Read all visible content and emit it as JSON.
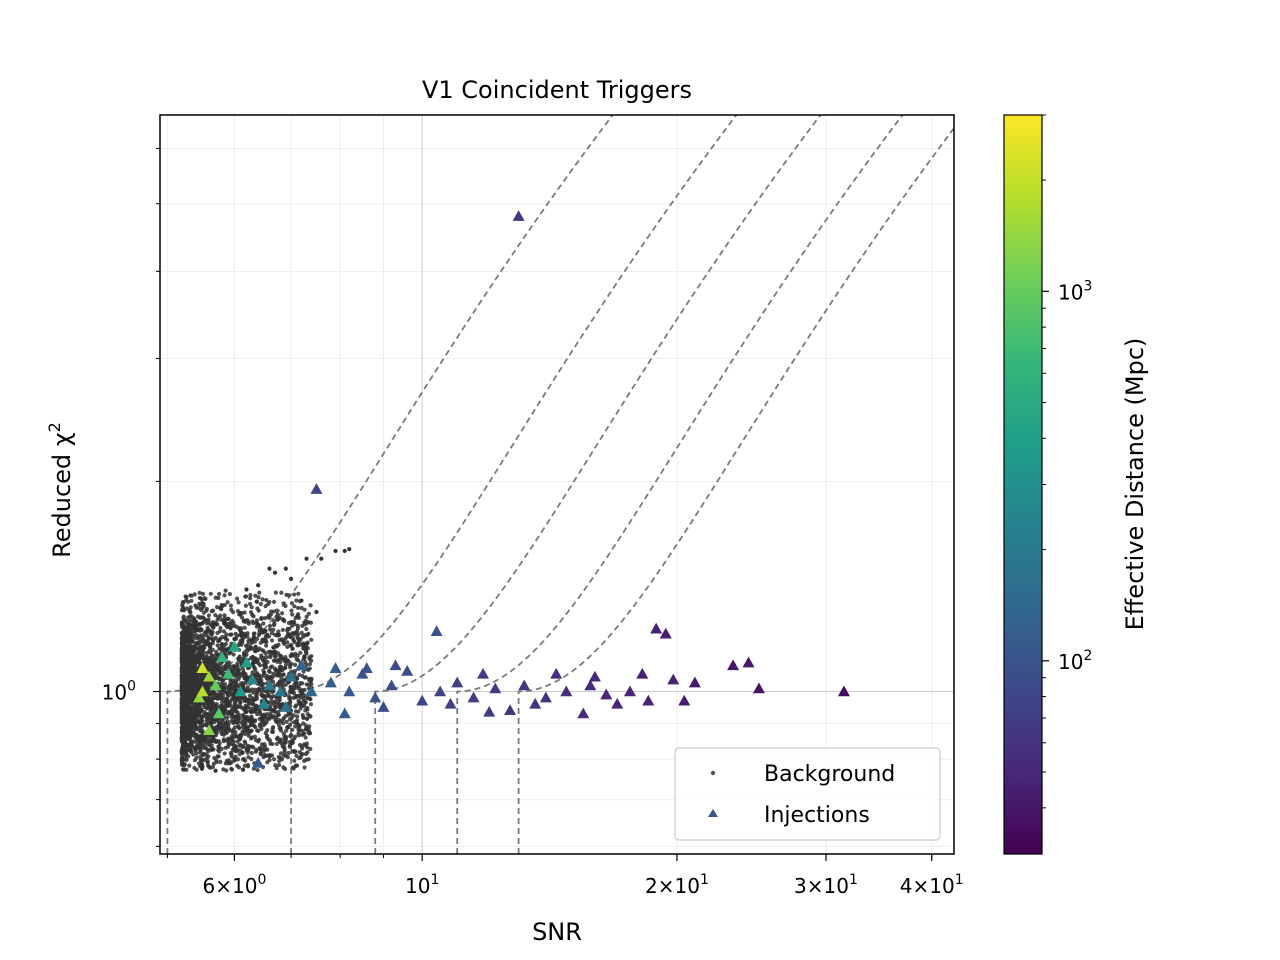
{
  "chart_data": {
    "type": "scatter",
    "title": "V1 Coincident Triggers",
    "xlabel": "SNR",
    "ylabel": "Reduced χ",
    "ylabel_exponent": "2",
    "x_scale": "log",
    "y_scale": "log",
    "xlim": [
      4.9,
      42.5
    ],
    "ylim": [
      0.585,
      6.7
    ],
    "x_ticks": [
      {
        "value": 6,
        "mantissa": "6",
        "times": "×",
        "base": "10",
        "exp": "0"
      },
      {
        "value": 10,
        "mantissa": "",
        "times": "",
        "base": "10",
        "exp": "1"
      },
      {
        "value": 20,
        "mantissa": "2",
        "times": "×",
        "base": "10",
        "exp": "1"
      },
      {
        "value": 30,
        "mantissa": "3",
        "times": "×",
        "base": "10",
        "exp": "1"
      },
      {
        "value": 40,
        "mantissa": "4",
        "times": "×",
        "base": "10",
        "exp": "1"
      }
    ],
    "y_ticks": [
      {
        "value": 1,
        "base": "10",
        "exp": "0"
      }
    ],
    "grid": true,
    "legend": {
      "placement": "lower-right",
      "entries": [
        {
          "label": "Background",
          "marker": "dot",
          "color": "#555555"
        },
        {
          "label": "Injections",
          "marker": "triangle",
          "color": "#3b528b"
        }
      ]
    },
    "colorbar": {
      "label": "Effective Distance (Mpc)",
      "scale": "log",
      "range": [
        30,
        3000
      ],
      "ticks": [
        {
          "value": 100,
          "base": "10",
          "exp": "2"
        },
        {
          "value": 1000,
          "base": "10",
          "exp": "3"
        }
      ],
      "colormap": "viridis",
      "stops": [
        "#440154",
        "#482878",
        "#3e4989",
        "#31688e",
        "#26828e",
        "#1f9e89",
        "#35b779",
        "#6ece58",
        "#b5de2b",
        "#fde725"
      ]
    },
    "contours": {
      "style": "dashed",
      "color": "#7a7a7a",
      "thresholds_snr": [
        5.0,
        7.0,
        8.8,
        11.0,
        13.0
      ],
      "vertical_drop_to_y": 0.585,
      "knee_chi2": 1.0
    },
    "series": [
      {
        "name": "Background",
        "marker": "dot",
        "color": "#333333",
        "description_summary": "dense cluster of background triggers",
        "cluster": {
          "snr_range": [
            5.2,
            7.4
          ],
          "chi2_center": 1.0,
          "chi2_spread": [
            0.8,
            1.3
          ]
        },
        "outliers": [
          {
            "x": 6.6,
            "y": 1.5
          },
          {
            "x": 6.7,
            "y": 1.48
          },
          {
            "x": 6.9,
            "y": 1.5
          },
          {
            "x": 7.3,
            "y": 1.55
          },
          {
            "x": 7.6,
            "y": 1.55
          },
          {
            "x": 7.9,
            "y": 1.59
          },
          {
            "x": 8.1,
            "y": 1.59
          },
          {
            "x": 8.2,
            "y": 1.6
          },
          {
            "x": 7.0,
            "y": 1.45
          },
          {
            "x": 6.4,
            "y": 1.42
          },
          {
            "x": 7.2,
            "y": 1.35
          },
          {
            "x": 6.2,
            "y": 1.4
          },
          {
            "x": 7.5,
            "y": 1.3
          },
          {
            "x": 5.7,
            "y": 0.77
          },
          {
            "x": 5.6,
            "y": 0.78
          },
          {
            "x": 6.0,
            "y": 0.8
          }
        ]
      },
      {
        "name": "Injections",
        "marker": "triangle",
        "color_by": "effective_distance_mpc",
        "points": [
          {
            "x": 13.0,
            "y": 4.8,
            "d": 65
          },
          {
            "x": 7.5,
            "y": 1.95,
            "d": 80
          },
          {
            "x": 10.4,
            "y": 1.22,
            "d": 95
          },
          {
            "x": 18.9,
            "y": 1.23,
            "d": 45
          },
          {
            "x": 19.4,
            "y": 1.21,
            "d": 45
          },
          {
            "x": 24.3,
            "y": 1.1,
            "d": 40
          },
          {
            "x": 23.3,
            "y": 1.09,
            "d": 40
          },
          {
            "x": 31.5,
            "y": 1.0,
            "d": 35
          },
          {
            "x": 25.0,
            "y": 1.01,
            "d": 38
          },
          {
            "x": 6.4,
            "y": 0.79,
            "d": 110
          },
          {
            "x": 15.5,
            "y": 0.93,
            "d": 55
          },
          {
            "x": 12.0,
            "y": 0.935,
            "d": 70
          },
          {
            "x": 12.7,
            "y": 0.94,
            "d": 65
          },
          {
            "x": 5.5,
            "y": 1.08,
            "d": 2200
          },
          {
            "x": 5.6,
            "y": 1.05,
            "d": 1500
          },
          {
            "x": 5.75,
            "y": 0.93,
            "d": 900
          },
          {
            "x": 5.9,
            "y": 1.06,
            "d": 700
          },
          {
            "x": 6.0,
            "y": 1.16,
            "d": 450
          },
          {
            "x": 5.5,
            "y": 1.0,
            "d": 1800
          },
          {
            "x": 5.45,
            "y": 0.98,
            "d": 1400
          },
          {
            "x": 6.1,
            "y": 1.0,
            "d": 350
          },
          {
            "x": 6.3,
            "y": 1.04,
            "d": 250
          },
          {
            "x": 6.6,
            "y": 1.02,
            "d": 200
          },
          {
            "x": 7.0,
            "y": 1.05,
            "d": 160
          },
          {
            "x": 7.4,
            "y": 1.0,
            "d": 140
          },
          {
            "x": 7.8,
            "y": 1.03,
            "d": 120
          },
          {
            "x": 8.2,
            "y": 1.0,
            "d": 110
          },
          {
            "x": 8.5,
            "y": 1.06,
            "d": 100
          },
          {
            "x": 8.8,
            "y": 0.98,
            "d": 95
          },
          {
            "x": 9.2,
            "y": 1.02,
            "d": 90
          },
          {
            "x": 9.6,
            "y": 1.07,
            "d": 85
          },
          {
            "x": 10.0,
            "y": 0.97,
            "d": 80
          },
          {
            "x": 10.5,
            "y": 1.0,
            "d": 75
          },
          {
            "x": 11.0,
            "y": 1.03,
            "d": 70
          },
          {
            "x": 11.5,
            "y": 0.98,
            "d": 68
          },
          {
            "x": 12.2,
            "y": 1.01,
            "d": 65
          },
          {
            "x": 13.2,
            "y": 1.02,
            "d": 60
          },
          {
            "x": 14.0,
            "y": 0.98,
            "d": 58
          },
          {
            "x": 14.8,
            "y": 1.0,
            "d": 55
          },
          {
            "x": 15.8,
            "y": 1.02,
            "d": 52
          },
          {
            "x": 16.5,
            "y": 0.99,
            "d": 50
          },
          {
            "x": 17.6,
            "y": 1.0,
            "d": 48
          },
          {
            "x": 18.5,
            "y": 0.97,
            "d": 47
          },
          {
            "x": 19.8,
            "y": 1.04,
            "d": 46
          },
          {
            "x": 21.0,
            "y": 1.03,
            "d": 44
          },
          {
            "x": 7.2,
            "y": 1.09,
            "d": 130
          },
          {
            "x": 7.9,
            "y": 1.08,
            "d": 115
          },
          {
            "x": 8.6,
            "y": 1.08,
            "d": 100
          },
          {
            "x": 9.3,
            "y": 1.09,
            "d": 88
          },
          {
            "x": 11.8,
            "y": 1.06,
            "d": 68
          },
          {
            "x": 14.4,
            "y": 1.06,
            "d": 56
          },
          {
            "x": 16.0,
            "y": 1.05,
            "d": 50
          },
          {
            "x": 18.2,
            "y": 1.06,
            "d": 47
          },
          {
            "x": 20.4,
            "y": 0.97,
            "d": 44
          },
          {
            "x": 8.1,
            "y": 0.93,
            "d": 110
          },
          {
            "x": 9.0,
            "y": 0.95,
            "d": 92
          },
          {
            "x": 10.8,
            "y": 0.96,
            "d": 73
          },
          {
            "x": 13.6,
            "y": 0.96,
            "d": 59
          },
          {
            "x": 17.0,
            "y": 0.96,
            "d": 49
          },
          {
            "x": 6.9,
            "y": 0.95,
            "d": 170
          },
          {
            "x": 5.8,
            "y": 1.12,
            "d": 600
          },
          {
            "x": 6.2,
            "y": 1.1,
            "d": 400
          },
          {
            "x": 6.5,
            "y": 0.96,
            "d": 260
          },
          {
            "x": 5.6,
            "y": 0.88,
            "d": 1300
          },
          {
            "x": 5.7,
            "y": 1.02,
            "d": 1000
          },
          {
            "x": 6.8,
            "y": 1.0,
            "d": 190
          }
        ]
      }
    ]
  }
}
